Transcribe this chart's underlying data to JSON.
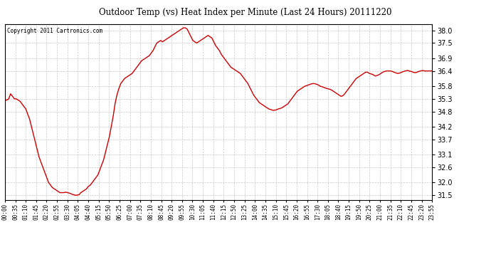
{
  "title": "Outdoor Temp (vs) Heat Index per Minute (Last 24 Hours) 20111220",
  "copyright": "Copyright 2011 Cartronics.com",
  "line_color": "#cc0000",
  "background_color": "#ffffff",
  "plot_bg_color": "#ffffff",
  "grid_color": "#bbbbbb",
  "yticks": [
    31.5,
    32.0,
    32.6,
    33.1,
    33.7,
    34.2,
    34.8,
    35.3,
    35.8,
    36.4,
    36.9,
    37.5,
    38.0
  ],
  "ylim": [
    31.3,
    38.25
  ],
  "xtick_labels": [
    "00:00",
    "00:35",
    "01:10",
    "01:45",
    "02:20",
    "02:55",
    "03:30",
    "04:05",
    "04:40",
    "05:15",
    "05:50",
    "06:25",
    "07:00",
    "07:35",
    "08:10",
    "08:45",
    "09:20",
    "09:55",
    "10:30",
    "11:05",
    "11:40",
    "12:15",
    "12:50",
    "13:25",
    "14:00",
    "14:35",
    "15:10",
    "15:45",
    "16:20",
    "16:55",
    "17:30",
    "18:05",
    "18:40",
    "19:15",
    "19:50",
    "20:25",
    "21:00",
    "21:35",
    "22:10",
    "22:45",
    "23:20",
    "23:55"
  ],
  "data_y": [
    35.25,
    35.25,
    35.3,
    35.5,
    35.4,
    35.3,
    35.3,
    35.25,
    35.2,
    35.1,
    35.0,
    34.9,
    34.7,
    34.5,
    34.2,
    33.9,
    33.6,
    33.3,
    33.0,
    32.8,
    32.6,
    32.4,
    32.2,
    32.0,
    31.9,
    31.8,
    31.75,
    31.7,
    31.65,
    31.6,
    31.6,
    31.6,
    31.62,
    31.6,
    31.58,
    31.55,
    31.52,
    31.5,
    31.5,
    31.52,
    31.6,
    31.65,
    31.7,
    31.75,
    31.85,
    31.9,
    32.0,
    32.1,
    32.2,
    32.3,
    32.5,
    32.7,
    32.9,
    33.2,
    33.5,
    33.8,
    34.2,
    34.6,
    35.1,
    35.45,
    35.7,
    35.9,
    36.0,
    36.1,
    36.15,
    36.2,
    36.25,
    36.3,
    36.4,
    36.5,
    36.6,
    36.7,
    36.8,
    36.85,
    36.9,
    36.95,
    37.0,
    37.1,
    37.2,
    37.35,
    37.5,
    37.55,
    37.6,
    37.55,
    37.6,
    37.65,
    37.7,
    37.75,
    37.8,
    37.85,
    37.9,
    37.95,
    38.0,
    38.05,
    38.1,
    38.1,
    38.05,
    37.9,
    37.75,
    37.6,
    37.55,
    37.5,
    37.55,
    37.6,
    37.65,
    37.7,
    37.75,
    37.8,
    37.75,
    37.7,
    37.55,
    37.4,
    37.3,
    37.2,
    37.05,
    36.95,
    36.85,
    36.75,
    36.65,
    36.55,
    36.5,
    36.45,
    36.4,
    36.35,
    36.3,
    36.2,
    36.1,
    36.0,
    35.9,
    35.75,
    35.6,
    35.45,
    35.35,
    35.25,
    35.15,
    35.1,
    35.05,
    35.0,
    34.95,
    34.9,
    34.88,
    34.85,
    34.85,
    34.87,
    34.9,
    34.92,
    34.95,
    35.0,
    35.05,
    35.1,
    35.2,
    35.3,
    35.4,
    35.5,
    35.6,
    35.65,
    35.7,
    35.75,
    35.8,
    35.82,
    35.85,
    35.88,
    35.9,
    35.9,
    35.88,
    35.85,
    35.8,
    35.78,
    35.75,
    35.72,
    35.7,
    35.68,
    35.65,
    35.6,
    35.55,
    35.5,
    35.45,
    35.4,
    35.42,
    35.5,
    35.6,
    35.7,
    35.8,
    35.9,
    36.0,
    36.1,
    36.15,
    36.2,
    36.25,
    36.3,
    36.35,
    36.35,
    36.3,
    36.28,
    36.25,
    36.2,
    36.22,
    36.25,
    36.3,
    36.35,
    36.38,
    36.4,
    36.4,
    36.4,
    36.38,
    36.35,
    36.32,
    36.3,
    36.32,
    36.35,
    36.38,
    36.4,
    36.42,
    36.4,
    36.38,
    36.35,
    36.33,
    36.35,
    36.38,
    36.4,
    36.42,
    36.4,
    36.4,
    36.4,
    36.4,
    36.4
  ]
}
